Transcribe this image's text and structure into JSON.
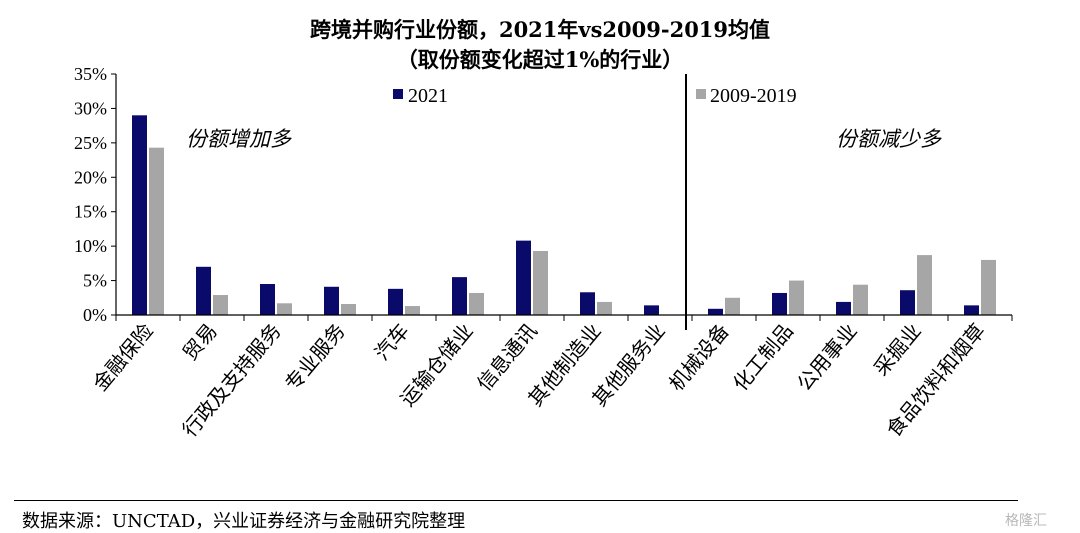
{
  "chart_data": {
    "type": "bar",
    "title": "跨境并购行业份额，2021年vs2009-2019均值",
    "subtitle": "（取份额变化超过1%的行业）",
    "categories": [
      "金融保险",
      "贸易",
      "行政及支持服务",
      "专业服务",
      "汽车",
      "运输仓储业",
      "信息通讯",
      "其他制造业",
      "其他服务业",
      "机械设备",
      "化工制品",
      "公用事业",
      "采掘业",
      "食品饮料和烟草"
    ],
    "series": [
      {
        "name": "2021",
        "color": "#0a0a6b",
        "values": [
          29.0,
          7.0,
          4.5,
          4.1,
          3.8,
          5.5,
          10.8,
          3.3,
          1.4,
          0.9,
          3.2,
          1.9,
          3.6,
          1.4
        ]
      },
      {
        "name": "2009-2019",
        "color": "#a6a6a6",
        "values": [
          24.3,
          2.9,
          1.7,
          1.6,
          1.3,
          3.2,
          9.3,
          1.9,
          0.0,
          2.5,
          5.0,
          4.4,
          8.7,
          8.0
        ]
      }
    ],
    "ylim": [
      0,
      35
    ],
    "yticks": [
      "0%",
      "5%",
      "10%",
      "15%",
      "20%",
      "25%",
      "30%",
      "35%"
    ],
    "legend_position": "top",
    "annotations": {
      "left": "份额增加多",
      "right": "份额减少多"
    }
  },
  "footer": {
    "source": "数据来源：UNCTAD，兴业证券经济与金融研究院整理",
    "watermark": "格隆汇"
  }
}
